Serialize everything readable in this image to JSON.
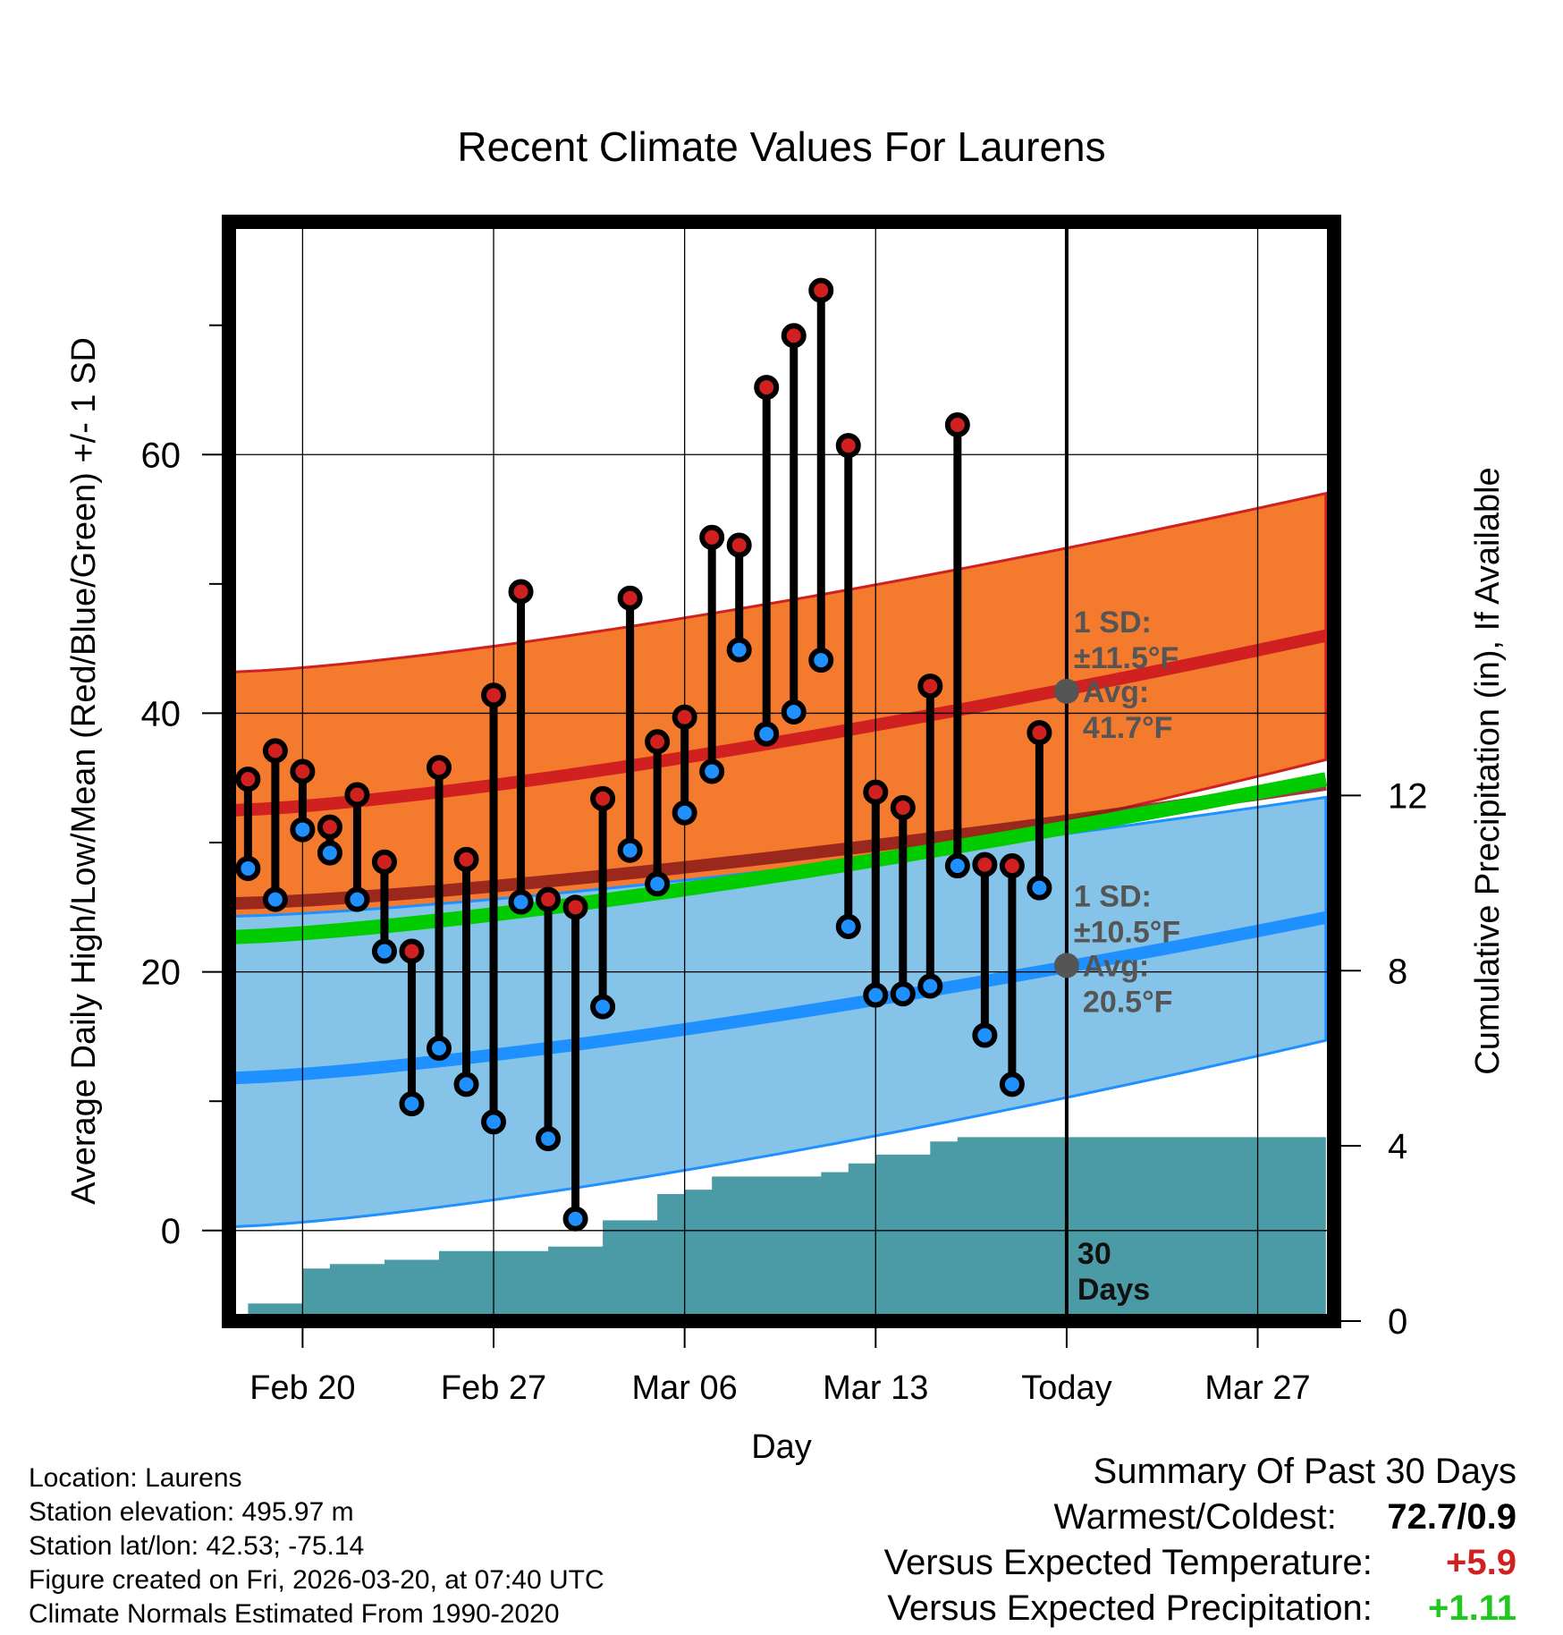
{
  "chart_data": {
    "type": "line",
    "title": "Recent Climate Values For Laurens",
    "xlabel": "Day",
    "ylabel": "Average Daily High/Low/Mean (Red/Blue/Green) +/- 1 SD",
    "y2label": "Cumulative Precipitation (in), If Available",
    "x_tick_labels": [
      "Feb 20",
      "Feb 27",
      "Mar 06",
      "Mar 13",
      "Today",
      "Mar 27"
    ],
    "x_tick_days": [
      2,
      9,
      16,
      23,
      30,
      37
    ],
    "x_range": [
      -0.7,
      39.8
    ],
    "y_ticks": [
      0,
      20,
      40,
      60
    ],
    "y_minor_ticks": [
      10,
      30,
      50,
      70
    ],
    "ylim": [
      -7,
      78
    ],
    "y2_ticks": [
      0,
      4,
      8,
      12
    ],
    "y2lim": [
      0,
      25.1
    ],
    "today_day": 30,
    "today_label": [
      "30",
      "Days"
    ],
    "observed": {
      "days": [
        0,
        1,
        2,
        3,
        4,
        5,
        6,
        7,
        8,
        9,
        10,
        11,
        12,
        13,
        14,
        15,
        16,
        17,
        18,
        19,
        20,
        21,
        22,
        23,
        24,
        25,
        26,
        27,
        28,
        29
      ],
      "high": [
        34.9,
        37.1,
        35.5,
        31.2,
        33.7,
        28.5,
        21.6,
        35.8,
        28.7,
        41.4,
        49.4,
        25.6,
        25.0,
        33.4,
        48.9,
        37.8,
        39.7,
        53.6,
        53.0,
        65.2,
        69.2,
        72.7,
        60.7,
        33.9,
        32.7,
        42.1,
        62.3,
        28.3,
        28.2,
        38.5
      ],
      "low": [
        28.0,
        25.6,
        31.0,
        29.2,
        25.6,
        21.6,
        9.8,
        14.1,
        11.3,
        8.4,
        25.4,
        7.1,
        0.9,
        17.3,
        29.4,
        26.8,
        32.3,
        35.5,
        44.9,
        38.4,
        40.1,
        44.1,
        23.5,
        18.2,
        18.3,
        18.9,
        28.2,
        15.1,
        11.3,
        26.5
      ]
    },
    "normals": {
      "days": [
        -0.5,
        39.5
      ],
      "avg_high": [
        32.5,
        46.0
      ],
      "avg_high_band": [
        [
          21.0,
          43.2
        ],
        [
          36.4,
          57.0
        ]
      ],
      "avg_low": [
        11.8,
        24.2
      ],
      "avg_low_band": [
        [
          0.3,
          24.3
        ],
        [
          14.7,
          33.5
        ]
      ],
      "avg_mean": [
        22.7,
        34.9
      ]
    },
    "precipitation": {
      "days": [
        -0.5,
        0,
        1,
        2,
        3,
        4,
        5,
        6,
        7,
        8,
        9,
        10,
        11,
        12,
        13,
        14,
        15,
        16,
        17,
        18,
        19,
        20,
        21,
        22,
        23,
        24,
        25,
        26,
        27,
        28,
        29,
        30,
        39.5
      ],
      "cumulative_in": [
        0,
        0.4,
        0.4,
        1.2,
        1.3,
        1.3,
        1.4,
        1.4,
        1.6,
        1.6,
        1.6,
        1.6,
        1.7,
        1.7,
        2.3,
        2.3,
        2.9,
        3.0,
        3.3,
        3.3,
        3.3,
        3.3,
        3.4,
        3.6,
        3.8,
        3.8,
        4.1,
        4.2,
        4.2,
        4.2,
        4.2,
        4.2,
        4.2
      ]
    },
    "today_high_marker": 41.7,
    "today_low_marker": 20.5,
    "annotations": {
      "high_sd_label": "1 SD:",
      "high_sd_value": "±11.5°F",
      "high_avg_label": "Avg:",
      "high_avg_value": "41.7°F",
      "low_sd_label": "1 SD:",
      "low_sd_value": "±10.5°F",
      "low_avg_label": "Avg:",
      "low_avg_value": "20.5°F"
    }
  },
  "info": {
    "location": "Location: Laurens",
    "elevation": "Station elevation: 495.97 m",
    "latlon": "Station lat/lon: 42.53; -75.14",
    "created": "Figure created on Fri, 2026-03-20, at 07:40 UTC",
    "normals": "Climate Normals Estimated From 1990-2020"
  },
  "summary": {
    "title": "Summary Of Past 30 Days",
    "warm_cold_label": "Warmest/Coldest:",
    "warm_cold_value": "72.7/0.9",
    "temp_label": "Versus Expected Temperature:",
    "temp_value": "+5.9",
    "precip_label": "Versus Expected Precipitation:",
    "precip_value": "+1.11"
  },
  "colors": {
    "high_band": "#f47a2e",
    "high_line": "#d02020",
    "low_band": "#86c3e8",
    "low_line": "#1e90ff",
    "mean_line": "#00cc00",
    "precip": "#4a9ba6",
    "high_dot": "#d02020",
    "low_dot": "#1e90ff",
    "marker": "#555555",
    "annotation": "#555555",
    "temp_pos": "#d02020",
    "precip_pos": "#1ec81e"
  }
}
